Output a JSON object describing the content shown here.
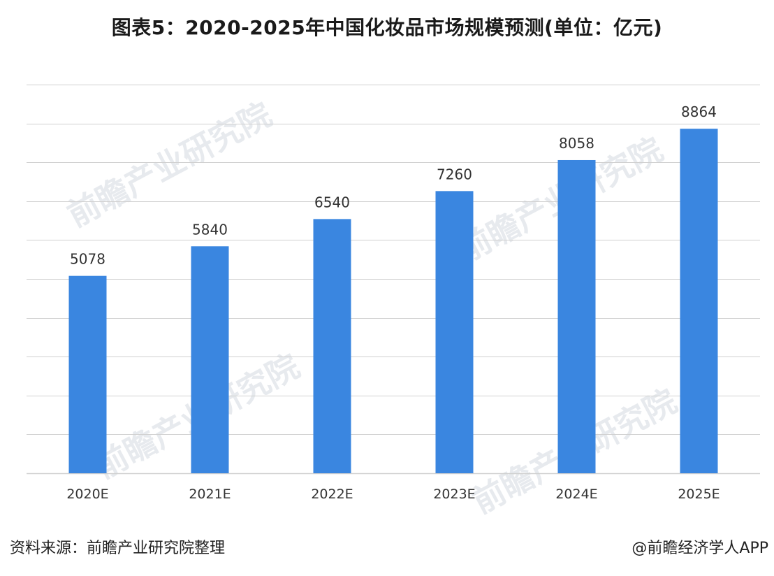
{
  "title": "图表5：2020-2025年中国化妆品市场规模预测(单位：亿元)",
  "footer": {
    "source": "资料来源：前瞻产业研究院整理",
    "credit": "@前瞻经济学人APP"
  },
  "watermark_text": "前瞻产业研究院",
  "colors": {
    "bar": "#3a86e0",
    "grid": "#d0d0d0",
    "label": "#333333"
  },
  "chart_data": {
    "type": "bar",
    "title": "图表5：2020-2025年中国化妆品市场规模预测(单位：亿元)",
    "xlabel": "",
    "ylabel": "",
    "categories": [
      "2020E",
      "2021E",
      "2022E",
      "2023E",
      "2024E",
      "2025E"
    ],
    "values": [
      5078,
      5840,
      6540,
      7260,
      8058,
      8864
    ],
    "ylim": [
      0,
      10000
    ],
    "grid": true,
    "data_labels": true
  }
}
